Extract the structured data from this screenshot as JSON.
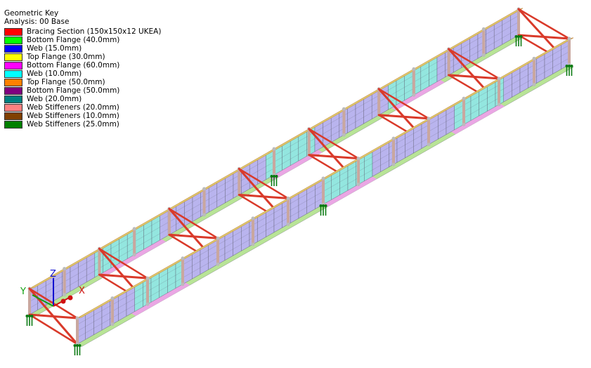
{
  "key": {
    "title": "Geometric Key",
    "analysis": "Analysis: 00 Base",
    "items": [
      {
        "label": "Bracing Section (150x150x12 UKEA)",
        "color": "#ff0000"
      },
      {
        "label": "Bottom Flange (40.0mm)",
        "color": "#00ff00"
      },
      {
        "label": "Web (15.0mm)",
        "color": "#0000ff"
      },
      {
        "label": "Top Flange (30.0mm)",
        "color": "#ffff00"
      },
      {
        "label": "Bottom Flange (60.0mm)",
        "color": "#ff00ff"
      },
      {
        "label": "Web (10.0mm)",
        "color": "#00ffff"
      },
      {
        "label": "Top Flange (50.0mm)",
        "color": "#ff8000"
      },
      {
        "label": "Bottom Flange (50.0mm)",
        "color": "#800080"
      },
      {
        "label": "Web (20.0mm)",
        "color": "#008080"
      },
      {
        "label": "Web Stiffeners (20.0mm)",
        "color": "#ff8080"
      },
      {
        "label": "Web Stiffeners (10.0mm)",
        "color": "#804000"
      },
      {
        "label": "Web Stiffeners (25.0mm)",
        "color": "#008000"
      }
    ]
  },
  "axes": {
    "x": "X",
    "y": "Y",
    "z": "Z"
  },
  "colors": {
    "web_lilac": "#b9b4ee",
    "web_teal": "#93e6df",
    "mesh_line": "#556",
    "top_flange": "#e6df74",
    "top_flange_edge": "#c9924d",
    "bottom_flange": "#b8e496",
    "bottom_flange_pink": "#eaa6e4",
    "stiffener": "#c9a79f",
    "bracing": "#d93a2a",
    "support": "#0a7a12",
    "node": "#bbbbbb"
  }
}
